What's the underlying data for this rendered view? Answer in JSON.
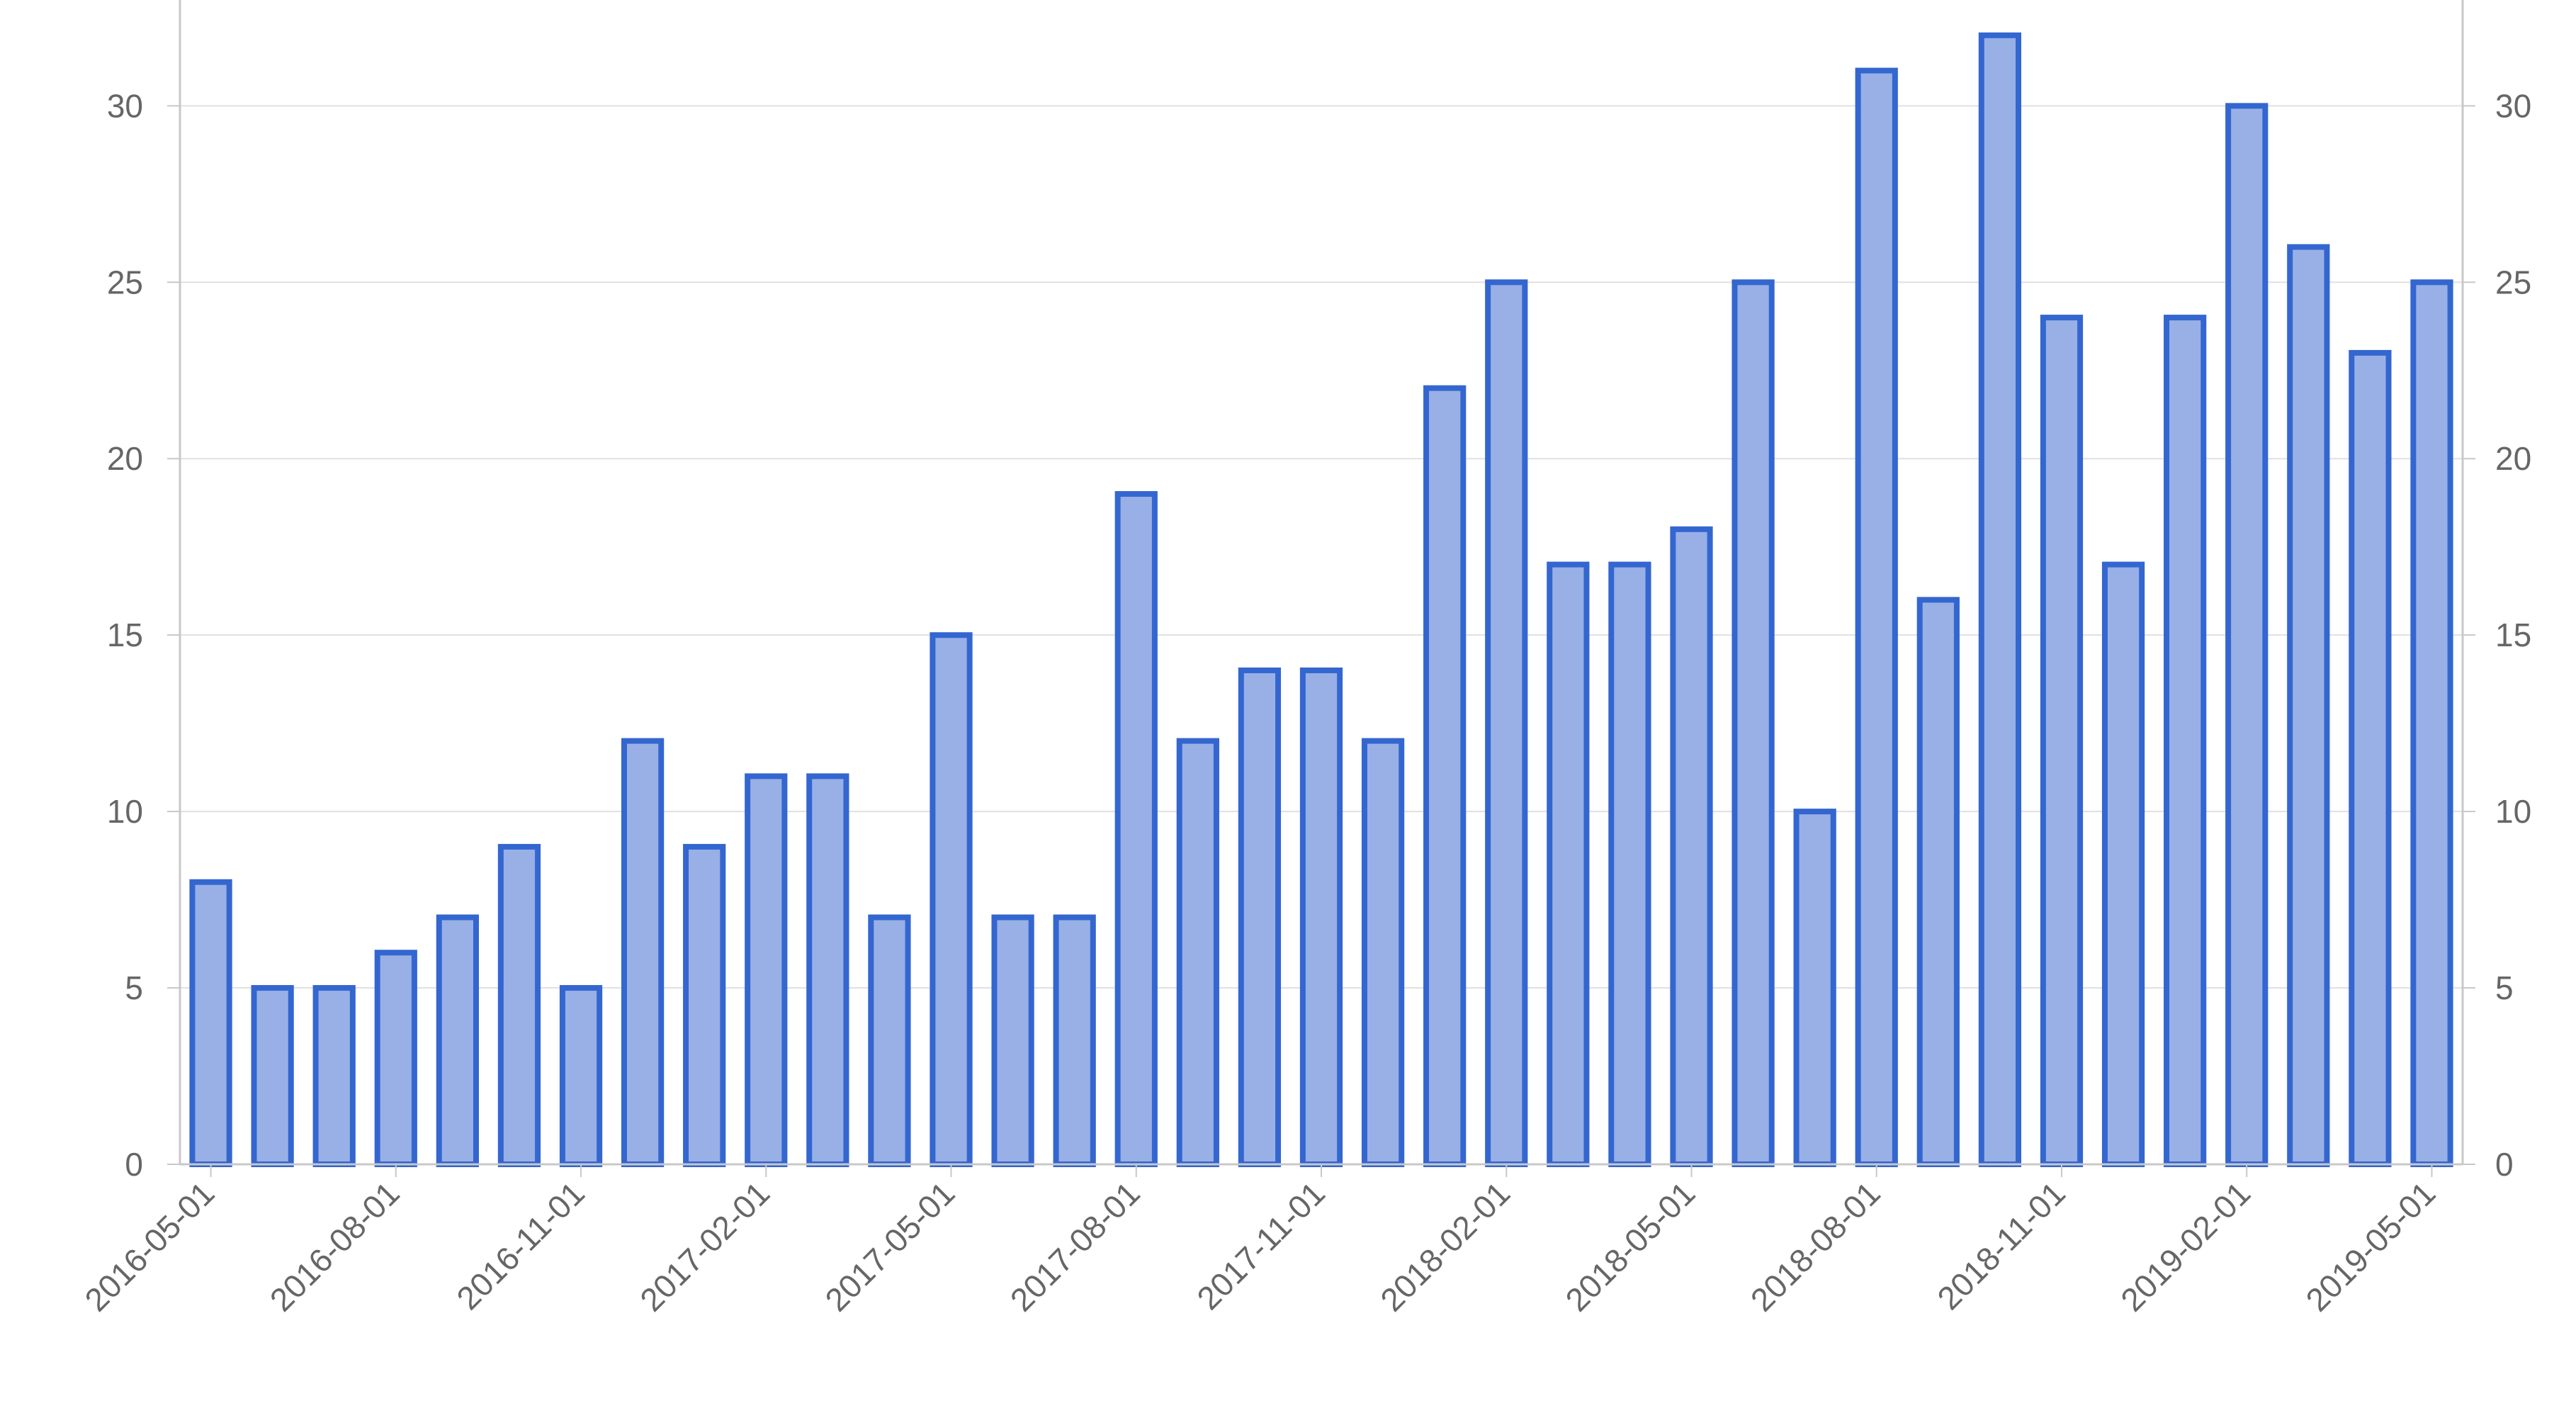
{
  "chart_data": {
    "type": "bar",
    "title": "",
    "xlabel": "",
    "ylabel": "",
    "categories": [
      "2016-05-01",
      "2016-06-01",
      "2016-07-01",
      "2016-08-01",
      "2016-09-01",
      "2016-10-01",
      "2016-11-01",
      "2016-12-01",
      "2017-01-01",
      "2017-02-01",
      "2017-03-01",
      "2017-04-01",
      "2017-05-01",
      "2017-06-01",
      "2017-07-01",
      "2017-08-01",
      "2017-09-01",
      "2017-10-01",
      "2017-11-01",
      "2017-12-01",
      "2018-01-01",
      "2018-02-01",
      "2018-03-01",
      "2018-04-01",
      "2018-05-01",
      "2018-06-01",
      "2018-07-01",
      "2018-08-01",
      "2018-09-01",
      "2018-10-01",
      "2018-11-01",
      "2018-12-01",
      "2019-01-01",
      "2019-02-01",
      "2019-03-01",
      "2019-04-01",
      "2019-05-01"
    ],
    "values": [
      8,
      5,
      5,
      6,
      7,
      9,
      5,
      12,
      9,
      11,
      11,
      7,
      15,
      7,
      7,
      19,
      12,
      14,
      14,
      12,
      22,
      25,
      17,
      17,
      18,
      25,
      10,
      31,
      16,
      32,
      24,
      17,
      24,
      30,
      26,
      23,
      25
    ],
    "x_tick_labels": [
      "2016-05-01",
      "2016-08-01",
      "2016-11-01",
      "2017-02-01",
      "2017-05-01",
      "2017-08-01",
      "2017-11-01",
      "2018-02-01",
      "2018-05-01",
      "2018-08-01",
      "2018-11-01",
      "2019-02-01",
      "2019-05-01"
    ],
    "y_ticks": [
      "0",
      "5",
      "10",
      "15",
      "20",
      "25",
      "30"
    ],
    "ylim": [
      0,
      33
    ],
    "secondary_y_axis": true,
    "grid": true,
    "colors": {
      "bar_fill": "#98b0e6",
      "bar_stroke": "#3466d0",
      "grid": "#e0e0e0",
      "axis": "#c8c8c8",
      "text": "#666666"
    }
  }
}
